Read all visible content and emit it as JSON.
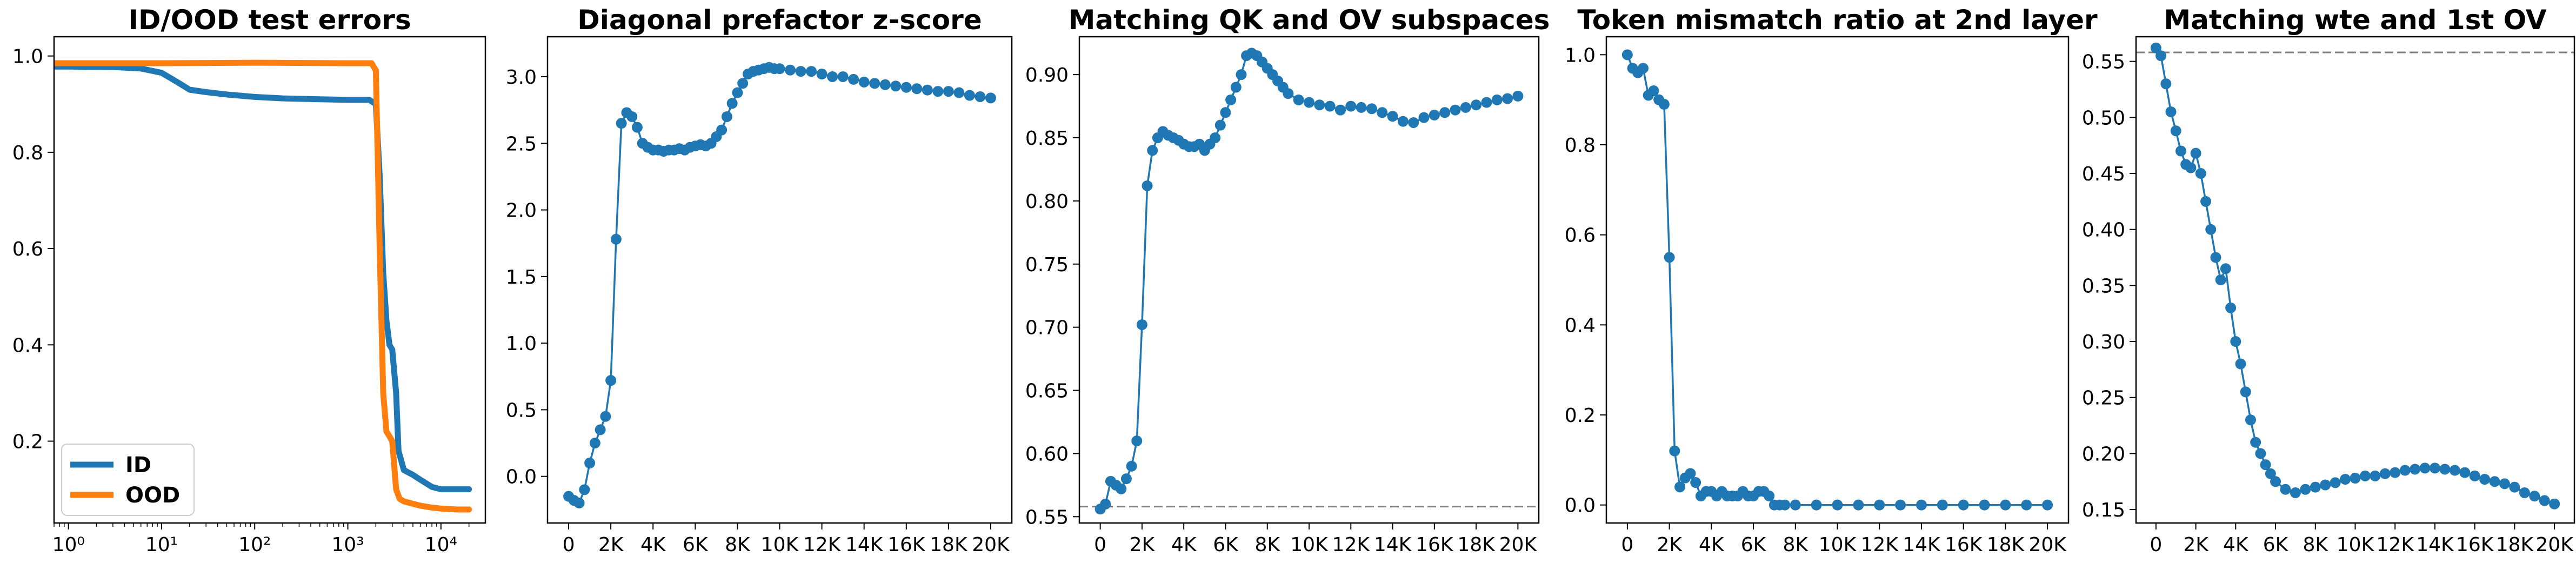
{
  "chart_data": [
    {
      "type": "line",
      "title": "ID/OOD test errors",
      "xscale": "log",
      "xlim": [
        0.7,
        30000
      ],
      "ylim": [
        0.03,
        1.04
      ],
      "xticks": [
        1,
        10,
        100,
        1000,
        10000
      ],
      "xticklabels": [
        "10⁰",
        "10¹",
        "10²",
        "10³",
        "10⁴"
      ],
      "yticks": [
        0.2,
        0.4,
        0.6,
        0.8,
        1.0
      ],
      "yticklabels": [
        "0.2",
        "0.4",
        "0.6",
        "0.8",
        "1.0"
      ],
      "legend": "lower-left",
      "series": [
        {
          "name": "ID",
          "color": "#1f77b4",
          "x": [
            0.7,
            1,
            3,
            6,
            10,
            15,
            20,
            30,
            50,
            100,
            200,
            500,
            1000,
            1700,
            2000,
            2200,
            2400,
            2600,
            2800,
            3000,
            3300,
            3500,
            4000,
            5000,
            6000,
            8000,
            10000,
            15000,
            20000
          ],
          "y": [
            0.978,
            0.978,
            0.977,
            0.974,
            0.965,
            0.945,
            0.93,
            0.925,
            0.92,
            0.915,
            0.912,
            0.91,
            0.909,
            0.909,
            0.9,
            0.75,
            0.55,
            0.45,
            0.4,
            0.39,
            0.3,
            0.18,
            0.14,
            0.13,
            0.12,
            0.105,
            0.1,
            0.1,
            0.1
          ]
        },
        {
          "name": "OOD",
          "color": "#ff7f0e",
          "x": [
            0.7,
            1,
            10,
            100,
            1000,
            1800,
            2000,
            2200,
            2400,
            2600,
            2800,
            3000,
            3300,
            3600,
            4000,
            5000,
            6000,
            8000,
            10000,
            15000,
            20000
          ],
          "y": [
            0.985,
            0.985,
            0.985,
            0.986,
            0.985,
            0.985,
            0.97,
            0.6,
            0.3,
            0.22,
            0.21,
            0.2,
            0.1,
            0.08,
            0.075,
            0.07,
            0.066,
            0.062,
            0.06,
            0.058,
            0.058
          ]
        }
      ]
    },
    {
      "type": "line",
      "title": "Diagonal prefactor z-score",
      "markers": true,
      "xlim": [
        -1000,
        21000
      ],
      "ylim": [
        -0.35,
        3.3
      ],
      "xticks": [
        0,
        2000,
        4000,
        6000,
        8000,
        10000,
        12000,
        14000,
        16000,
        18000,
        20000
      ],
      "xticklabels": [
        "0",
        "2K",
        "4K",
        "6K",
        "8K",
        "10K",
        "12K",
        "14K",
        "16K",
        "18K",
        "20K"
      ],
      "yticks": [
        0,
        0.5,
        1,
        1.5,
        2,
        2.5,
        3
      ],
      "yticklabels": [
        "0.0",
        "0.5",
        "1.0",
        "1.5",
        "2.0",
        "2.5",
        "3.0"
      ],
      "series": [
        {
          "color": "#1f77b4",
          "x": [
            0,
            250,
            500,
            750,
            1000,
            1250,
            1500,
            1750,
            2000,
            2250,
            2500,
            2750,
            3000,
            3250,
            3500,
            3750,
            4000,
            4250,
            4500,
            4750,
            5000,
            5250,
            5500,
            5750,
            6000,
            6250,
            6500,
            6750,
            7000,
            7250,
            7500,
            7750,
            8000,
            8250,
            8500,
            8750,
            9000,
            9250,
            9500,
            9750,
            10000,
            10500,
            11000,
            11500,
            12000,
            12500,
            13000,
            13500,
            14000,
            14500,
            15000,
            15500,
            16000,
            16500,
            17000,
            17500,
            18000,
            18500,
            19000,
            19500,
            20000
          ],
          "y": [
            -0.15,
            -0.18,
            -0.2,
            -0.1,
            0.1,
            0.25,
            0.35,
            0.45,
            0.72,
            1.78,
            2.65,
            2.73,
            2.7,
            2.62,
            2.5,
            2.47,
            2.45,
            2.45,
            2.44,
            2.45,
            2.45,
            2.46,
            2.45,
            2.47,
            2.48,
            2.49,
            2.48,
            2.5,
            2.55,
            2.6,
            2.7,
            2.8,
            2.88,
            2.95,
            3.02,
            3.04,
            3.05,
            3.06,
            3.07,
            3.06,
            3.06,
            3.05,
            3.04,
            3.04,
            3.02,
            3.0,
            3.0,
            2.98,
            2.96,
            2.95,
            2.94,
            2.93,
            2.92,
            2.91,
            2.9,
            2.89,
            2.89,
            2.88,
            2.86,
            2.85,
            2.84
          ]
        }
      ]
    },
    {
      "type": "line",
      "title": "Matching QK and OV subspaces",
      "markers": true,
      "xlim": [
        -1000,
        21000
      ],
      "ylim": [
        0.545,
        0.93
      ],
      "xticks": [
        0,
        2000,
        4000,
        6000,
        8000,
        10000,
        12000,
        14000,
        16000,
        18000,
        20000
      ],
      "xticklabels": [
        "0",
        "2K",
        "4K",
        "6K",
        "8K",
        "10K",
        "12K",
        "14K",
        "16K",
        "18K",
        "20K"
      ],
      "yticks": [
        0.55,
        0.6,
        0.65,
        0.7,
        0.75,
        0.8,
        0.85,
        0.9
      ],
      "yticklabels": [
        "0.55",
        "0.60",
        "0.65",
        "0.70",
        "0.75",
        "0.80",
        "0.85",
        "0.90"
      ],
      "hline": {
        "y": 0.558,
        "style": "dashed",
        "color": "#808080"
      },
      "series": [
        {
          "color": "#1f77b4",
          "x": [
            0,
            250,
            500,
            750,
            1000,
            1250,
            1500,
            1750,
            2000,
            2250,
            2500,
            2750,
            3000,
            3250,
            3500,
            3750,
            4000,
            4250,
            4500,
            4750,
            5000,
            5250,
            5500,
            5750,
            6000,
            6250,
            6500,
            6750,
            7000,
            7250,
            7500,
            7750,
            8000,
            8250,
            8500,
            8750,
            9000,
            9500,
            10000,
            10500,
            11000,
            11500,
            12000,
            12500,
            13000,
            13500,
            14000,
            14500,
            15000,
            15500,
            16000,
            16500,
            17000,
            17500,
            18000,
            18500,
            19000,
            19500,
            20000
          ],
          "y": [
            0.556,
            0.56,
            0.578,
            0.575,
            0.572,
            0.58,
            0.59,
            0.61,
            0.702,
            0.812,
            0.84,
            0.85,
            0.855,
            0.852,
            0.85,
            0.848,
            0.845,
            0.843,
            0.843,
            0.845,
            0.84,
            0.845,
            0.85,
            0.86,
            0.87,
            0.88,
            0.89,
            0.9,
            0.915,
            0.917,
            0.915,
            0.91,
            0.905,
            0.9,
            0.895,
            0.89,
            0.885,
            0.88,
            0.878,
            0.876,
            0.875,
            0.872,
            0.875,
            0.874,
            0.873,
            0.87,
            0.867,
            0.863,
            0.862,
            0.866,
            0.868,
            0.87,
            0.872,
            0.874,
            0.876,
            0.878,
            0.88,
            0.881,
            0.883
          ]
        }
      ]
    },
    {
      "type": "line",
      "title": "Token mismatch ratio at 2nd layer",
      "markers": true,
      "xlim": [
        -1000,
        21000
      ],
      "ylim": [
        -0.04,
        1.04
      ],
      "xticks": [
        0,
        2000,
        4000,
        6000,
        8000,
        10000,
        12000,
        14000,
        16000,
        18000,
        20000
      ],
      "xticklabels": [
        "0",
        "2K",
        "4K",
        "6K",
        "8K",
        "10K",
        "12K",
        "14K",
        "16K",
        "18K",
        "20K"
      ],
      "yticks": [
        0,
        0.2,
        0.4,
        0.6,
        0.8,
        1.0
      ],
      "yticklabels": [
        "0.0",
        "0.2",
        "0.4",
        "0.6",
        "0.8",
        "1.0"
      ],
      "series": [
        {
          "color": "#1f77b4",
          "x": [
            0,
            250,
            500,
            750,
            1000,
            1250,
            1500,
            1750,
            2000,
            2250,
            2500,
            2750,
            3000,
            3250,
            3500,
            3750,
            4000,
            4250,
            4500,
            4750,
            5000,
            5250,
            5500,
            5750,
            6000,
            6250,
            6500,
            6750,
            7000,
            7250,
            7500,
            8000,
            9000,
            10000,
            11000,
            12000,
            13000,
            14000,
            15000,
            16000,
            17000,
            18000,
            19000,
            20000
          ],
          "y": [
            1.0,
            0.97,
            0.96,
            0.97,
            0.91,
            0.92,
            0.9,
            0.89,
            0.55,
            0.12,
            0.04,
            0.06,
            0.07,
            0.05,
            0.02,
            0.03,
            0.03,
            0.02,
            0.03,
            0.02,
            0.02,
            0.02,
            0.03,
            0.02,
            0.02,
            0.03,
            0.03,
            0.02,
            0.0,
            0.0,
            0.0,
            0.0,
            0.0,
            0.0,
            0.0,
            0.0,
            0.0,
            0.0,
            0.0,
            0.0,
            0.0,
            0.0,
            0.0,
            0.0
          ]
        }
      ]
    },
    {
      "type": "line",
      "title": "Matching wte and 1st OV",
      "markers": true,
      "xlim": [
        -1000,
        21000
      ],
      "ylim": [
        0.138,
        0.572
      ],
      "xticks": [
        0,
        2000,
        4000,
        6000,
        8000,
        10000,
        12000,
        14000,
        16000,
        18000,
        20000
      ],
      "xticklabels": [
        "0",
        "2K",
        "4K",
        "6K",
        "8K",
        "10K",
        "12K",
        "14K",
        "16K",
        "18K",
        "20K"
      ],
      "yticks": [
        0.15,
        0.2,
        0.25,
        0.3,
        0.35,
        0.4,
        0.45,
        0.5,
        0.55
      ],
      "yticklabels": [
        "0.15",
        "0.20",
        "0.25",
        "0.30",
        "0.35",
        "0.40",
        "0.45",
        "0.50",
        "0.55"
      ],
      "hline": {
        "y": 0.558,
        "style": "dashed",
        "color": "#808080"
      },
      "series": [
        {
          "color": "#1f77b4",
          "x": [
            0,
            250,
            500,
            750,
            1000,
            1250,
            1500,
            1750,
            2000,
            2250,
            2500,
            2750,
            3000,
            3250,
            3500,
            3750,
            4000,
            4250,
            4500,
            4750,
            5000,
            5250,
            5500,
            5750,
            6000,
            6500,
            7000,
            7500,
            8000,
            8500,
            9000,
            9500,
            10000,
            10500,
            11000,
            11500,
            12000,
            12500,
            13000,
            13500,
            14000,
            14500,
            15000,
            15500,
            16000,
            16500,
            17000,
            17500,
            18000,
            18500,
            19000,
            19500,
            20000
          ],
          "y": [
            0.562,
            0.555,
            0.53,
            0.505,
            0.488,
            0.47,
            0.458,
            0.455,
            0.468,
            0.45,
            0.425,
            0.4,
            0.375,
            0.355,
            0.365,
            0.33,
            0.3,
            0.28,
            0.255,
            0.23,
            0.21,
            0.2,
            0.19,
            0.182,
            0.175,
            0.168,
            0.165,
            0.168,
            0.17,
            0.172,
            0.174,
            0.177,
            0.178,
            0.18,
            0.18,
            0.182,
            0.183,
            0.185,
            0.186,
            0.187,
            0.187,
            0.186,
            0.185,
            0.183,
            0.18,
            0.177,
            0.175,
            0.173,
            0.17,
            0.165,
            0.162,
            0.158,
            0.155
          ]
        }
      ]
    }
  ]
}
